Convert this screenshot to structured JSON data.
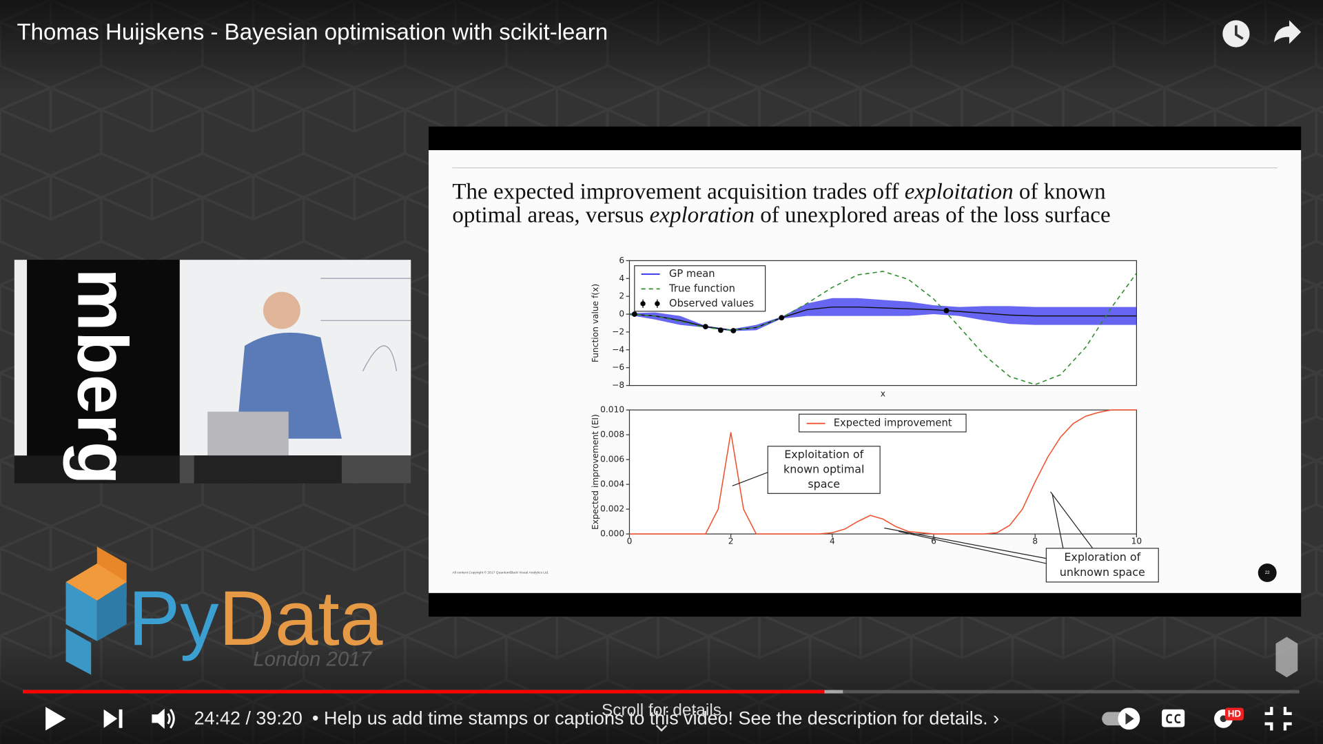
{
  "player": {
    "title": "Thomas Huijskens - Bayesian optimisation with scikit-learn",
    "time": "24:42 / 39:20",
    "notice": "• Help us add time stamps or captions to this video! See the description for details. ›",
    "scroll_hint": "Scroll for details",
    "hd_badge": "HD"
  },
  "inset": {
    "banner_text": "mberg"
  },
  "logo": {
    "name_part1": "Py",
    "name_part2": "Data",
    "subtitle": "London 2017"
  },
  "slide": {
    "title_line1": [
      "The expected improvement acquisition trades off ",
      "exploitation",
      " of known"
    ],
    "title_line2": [
      "optimal areas, versus ",
      "exploration",
      " of unexplored areas of the loss surface"
    ],
    "copyright": "All content Copyright © 2017 QuantumBlack Visual Analytics Ltd.",
    "page_number": "22",
    "top_chart": {
      "type": "line",
      "xlabel": "x",
      "ylabel": "Function value f(x)",
      "xlim": [
        0,
        10
      ],
      "ylim": [
        -8,
        6
      ],
      "yticks": [
        6,
        4,
        2,
        0,
        {
          "value": -2,
          "label": "−2"
        },
        {
          "value": -4,
          "label": "−4"
        },
        {
          "value": -6,
          "label": "−6"
        },
        {
          "value": -8,
          "label": "−8"
        }
      ],
      "series": [
        {
          "name": "GP mean",
          "color": "#3333ee",
          "x": [
            0,
            0.5,
            1,
            1.5,
            2,
            2.5,
            3,
            3.5,
            4,
            4.5,
            5,
            5.5,
            6,
            6.5,
            7,
            7.5,
            8,
            8.5,
            9,
            9.5,
            10
          ],
          "values": [
            0,
            -0.2,
            -0.7,
            -1.4,
            -1.8,
            -1.5,
            -0.4,
            0.5,
            0.8,
            0.8,
            0.7,
            0.6,
            0.5,
            0.3,
            0.1,
            -0.1,
            -0.2,
            -0.2,
            -0.2,
            -0.2,
            -0.2
          ],
          "lower": [
            -0.1,
            -0.6,
            -1.2,
            -1.5,
            -1.9,
            -1.8,
            -0.5,
            -0.2,
            -0.2,
            -0.2,
            -0.2,
            -0.2,
            0,
            -0.2,
            -0.7,
            -1.1,
            -1.2,
            -1.2,
            -1.2,
            -1.2,
            -1.2
          ],
          "upper": [
            0.1,
            0.2,
            -0.2,
            -1.3,
            -1.7,
            -1.2,
            -0.3,
            1.2,
            1.8,
            1.8,
            1.6,
            1.4,
            1.0,
            0.8,
            0.9,
            0.9,
            0.8,
            0.8,
            0.8,
            0.8,
            0.8
          ]
        },
        {
          "name": "True function",
          "color": "#2e8b2e",
          "x": [
            0,
            0.5,
            1,
            1.5,
            2,
            2.5,
            3,
            3.5,
            4,
            4.5,
            5,
            5.5,
            6,
            6.5,
            7,
            7.5,
            8,
            8.5,
            9,
            9.5,
            10
          ],
          "values": [
            0,
            -0.2,
            -0.8,
            -1.5,
            -1.8,
            -1.5,
            -0.4,
            1.2,
            3.0,
            4.4,
            4.8,
            3.9,
            1.7,
            -1.4,
            -4.6,
            -7.0,
            -7.9,
            -6.8,
            -3.7,
            0.7,
            4.6
          ]
        },
        {
          "name": "Observed values",
          "color": "#000000",
          "x": [
            0.1,
            1.5,
            1.8,
            2.05,
            3.0,
            6.25
          ],
          "values": [
            0,
            -1.4,
            -1.8,
            -1.85,
            -0.4,
            0.4
          ]
        }
      ]
    },
    "bottom_chart": {
      "type": "line",
      "ylabel": "Expected improvement (EI)",
      "xlim": [
        0,
        10
      ],
      "ylim": [
        0,
        0.01
      ],
      "yticks": [
        {
          "value": 0.01,
          "label": "0.010"
        },
        {
          "value": 0.008,
          "label": "0.008"
        },
        {
          "value": 0.006,
          "label": "0.006"
        },
        {
          "value": 0.004,
          "label": "0.004"
        },
        {
          "value": 0.002,
          "label": "0.002"
        },
        {
          "value": 0,
          "label": "0.000"
        }
      ],
      "xticks": [
        0,
        2,
        4,
        6,
        8,
        10
      ],
      "series": [
        {
          "name": "Expected improvement",
          "color": "#ee5533",
          "x": [
            0,
            0.25,
            0.5,
            0.75,
            1,
            1.25,
            1.5,
            1.75,
            2,
            2.25,
            2.5,
            2.75,
            3,
            3.25,
            3.5,
            3.75,
            4,
            4.25,
            4.5,
            4.75,
            5,
            5.25,
            5.5,
            5.75,
            6,
            6.25,
            6.5,
            6.75,
            7,
            7.25,
            7.5,
            7.75,
            8,
            8.25,
            8.5,
            8.75,
            9,
            9.25,
            9.5,
            9.75,
            10
          ],
          "values": [
            0,
            0,
            0,
            0,
            0,
            0,
            0,
            0.002,
            0.0082,
            0.002,
            0,
            0,
            0,
            0,
            0,
            0,
            0.0001,
            0.0004,
            0.001,
            0.0015,
            0.0012,
            0.0006,
            0.0002,
            0.0001,
            0,
            0,
            0,
            0,
            0,
            0.0001,
            0.0007,
            0.002,
            0.0042,
            0.0062,
            0.0078,
            0.0089,
            0.0095,
            0.0098,
            0.01,
            0.01,
            0.01
          ]
        }
      ],
      "annotations": [
        {
          "lines": [
            "Exploitation of",
            "known optimal",
            "space"
          ]
        },
        {
          "lines": [
            "Exploration of",
            "unknown space"
          ]
        }
      ]
    }
  }
}
